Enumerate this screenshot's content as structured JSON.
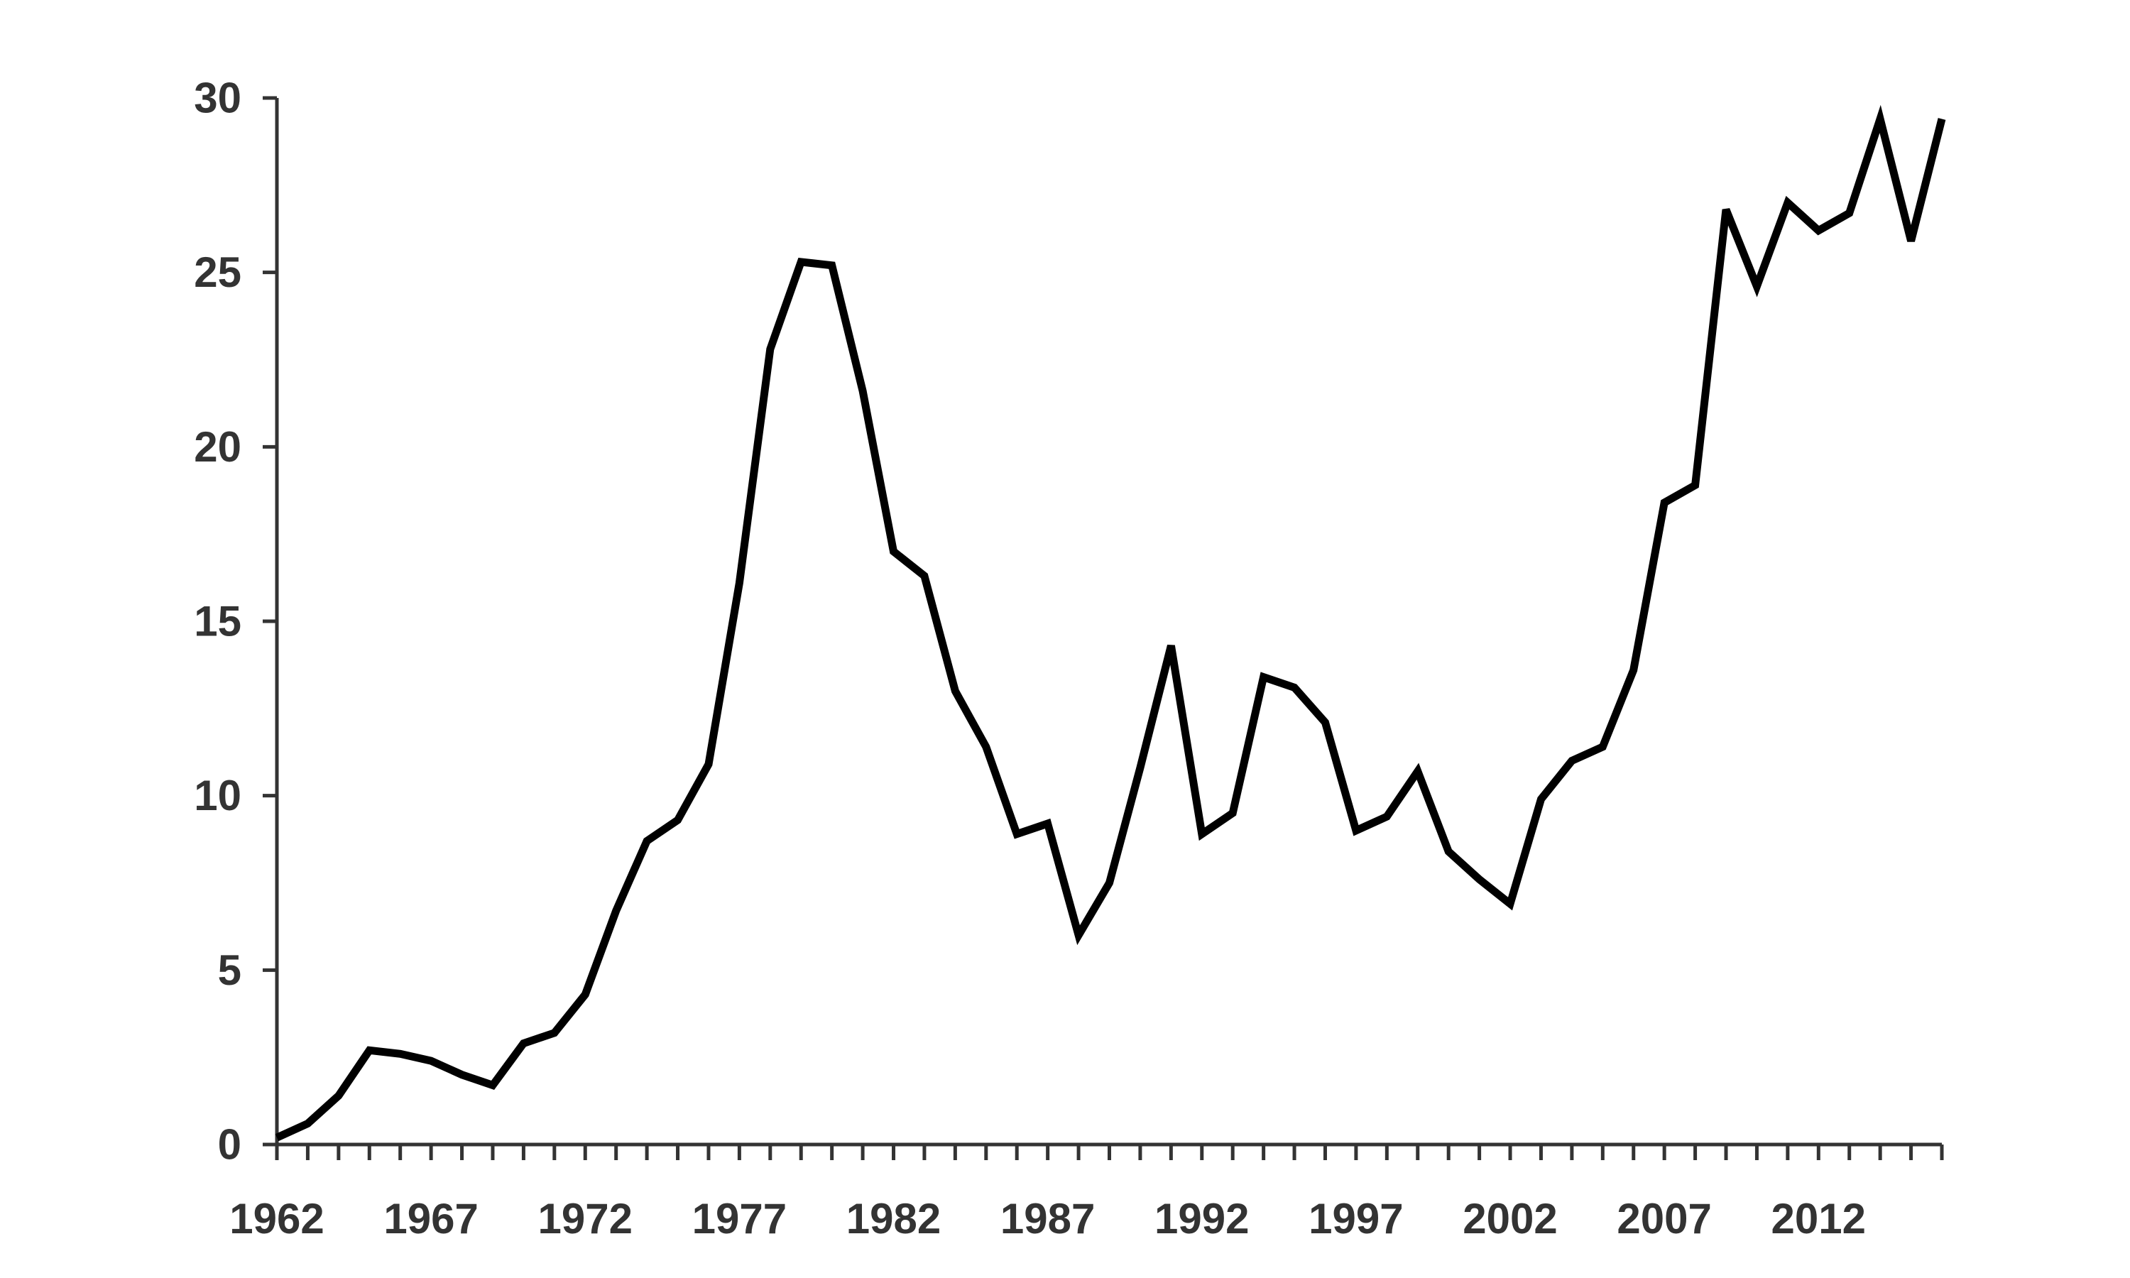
{
  "chart_data": {
    "type": "line",
    "x": [
      1962,
      1963,
      1964,
      1965,
      1966,
      1967,
      1968,
      1969,
      1970,
      1971,
      1972,
      1973,
      1974,
      1975,
      1976,
      1977,
      1978,
      1979,
      1980,
      1981,
      1982,
      1983,
      1984,
      1985,
      1986,
      1987,
      1988,
      1989,
      1990,
      1991,
      1992,
      1993,
      1994,
      1995,
      1996,
      1997,
      1998,
      1999,
      2000,
      2001,
      2002,
      2003,
      2004,
      2005,
      2006,
      2007,
      2008,
      2009,
      2010,
      2011,
      2012,
      2013,
      2014,
      2015,
      2016
    ],
    "series": [
      {
        "values": [
          0.2,
          0.6,
          1.4,
          2.7,
          2.6,
          2.4,
          2.0,
          1.7,
          2.9,
          3.2,
          4.3,
          6.7,
          8.7,
          9.3,
          10.9,
          16.1,
          22.8,
          25.3,
          25.2,
          21.6,
          17.0,
          16.3,
          13.0,
          11.4,
          8.9,
          9.2,
          6.0,
          7.5,
          10.8,
          14.3,
          8.9,
          9.5,
          13.4,
          13.1,
          12.1,
          9.0,
          9.4,
          10.7,
          8.4,
          7.6,
          6.9,
          9.9,
          11.0,
          11.4,
          13.6,
          18.4,
          18.9,
          26.8,
          24.6,
          27.0,
          26.2,
          26.7,
          29.4,
          25.9,
          29.4
        ]
      }
    ],
    "x_ticks": [
      "1962",
      "1967",
      "1972",
      "1977",
      "1982",
      "1987",
      "1992",
      "1997",
      "2002",
      "2007",
      "2012"
    ],
    "y_ticks": [
      "0",
      "5",
      "10",
      "15",
      "20",
      "25",
      "30"
    ],
    "xlim": [
      1962,
      2016
    ],
    "ylim": [
      0,
      30
    ],
    "title": "",
    "xlabel": "",
    "ylabel": "",
    "grid": false,
    "legend": "none",
    "line_color": "#000000",
    "axis_color": "#333333"
  }
}
